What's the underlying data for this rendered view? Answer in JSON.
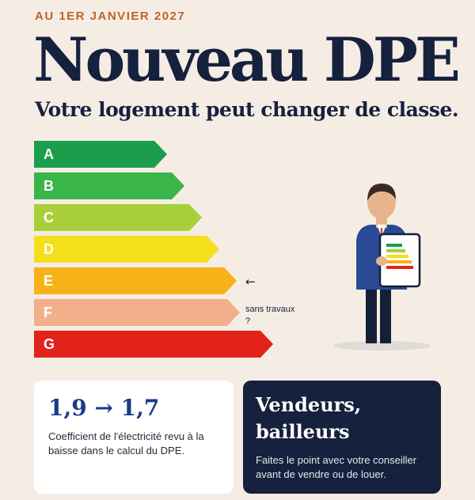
{
  "header": {
    "kicker": "AU 1ER JANVIER 2027",
    "title": "Nouveau DPE",
    "subtitle": "Votre logement peut changer de classe."
  },
  "energy_scale": {
    "classes": [
      {
        "letter": "A",
        "color": "#1a9e4b"
      },
      {
        "letter": "B",
        "color": "#3ab54a"
      },
      {
        "letter": "C",
        "color": "#a8cf3a"
      },
      {
        "letter": "D",
        "color": "#f3e01b"
      },
      {
        "letter": "E",
        "color": "#f7b21a"
      },
      {
        "letter": "F",
        "color": "#f2b08a"
      },
      {
        "letter": "G",
        "color": "#e2231a"
      }
    ],
    "arrow": "←",
    "note_line1": "sans travaux",
    "note_line2": "?"
  },
  "card_left": {
    "value": "1,9 → 1,7",
    "description": "Coefficient de l'électricité revu à la baisse dans le calcul du DPE."
  },
  "card_right": {
    "heading_line1": "Vendeurs,",
    "heading_line2": "bailleurs",
    "description": "Faites le point avec votre conseiller avant de vendre ou de louer."
  }
}
